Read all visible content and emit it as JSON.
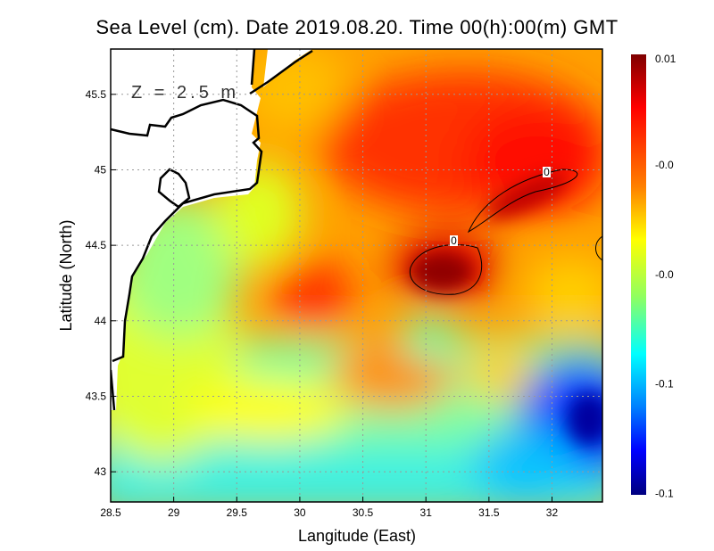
{
  "title": "Sea Level (cm). Date 2019.08.20. Time 00(h):00(m) GMT",
  "chart_data": {
    "type": "heatmap",
    "title": "Sea Level (cm). Date 2019.08.20. Time 00(h):00(m) GMT",
    "xlabel": "Langitude (East)",
    "ylabel": "Latitude (North)",
    "xlim": [
      28.5,
      32.4
    ],
    "ylim": [
      42.8,
      45.8
    ],
    "xticks": [
      "28.5",
      "29",
      "29.5",
      "30",
      "30.5",
      "31",
      "31.5",
      "32"
    ],
    "yticks": [
      "43",
      "43.5",
      "44",
      "44.5",
      "45",
      "45.5"
    ],
    "grid": true,
    "annotation": "Z = 2.5 m",
    "contour_labels": [
      "0",
      "0"
    ],
    "colorbar": {
      "placement": "right",
      "tick_labels": [
        "0.01",
        "-0.0",
        "-0.0",
        "-0.1",
        "-0.1"
      ],
      "colormap": [
        "#7f0000",
        "#ff0000",
        "#ff8000",
        "#ffff00",
        "#80ff80",
        "#00ffff",
        "#0080ff",
        "#0000ff",
        "#00007f"
      ]
    }
  }
}
